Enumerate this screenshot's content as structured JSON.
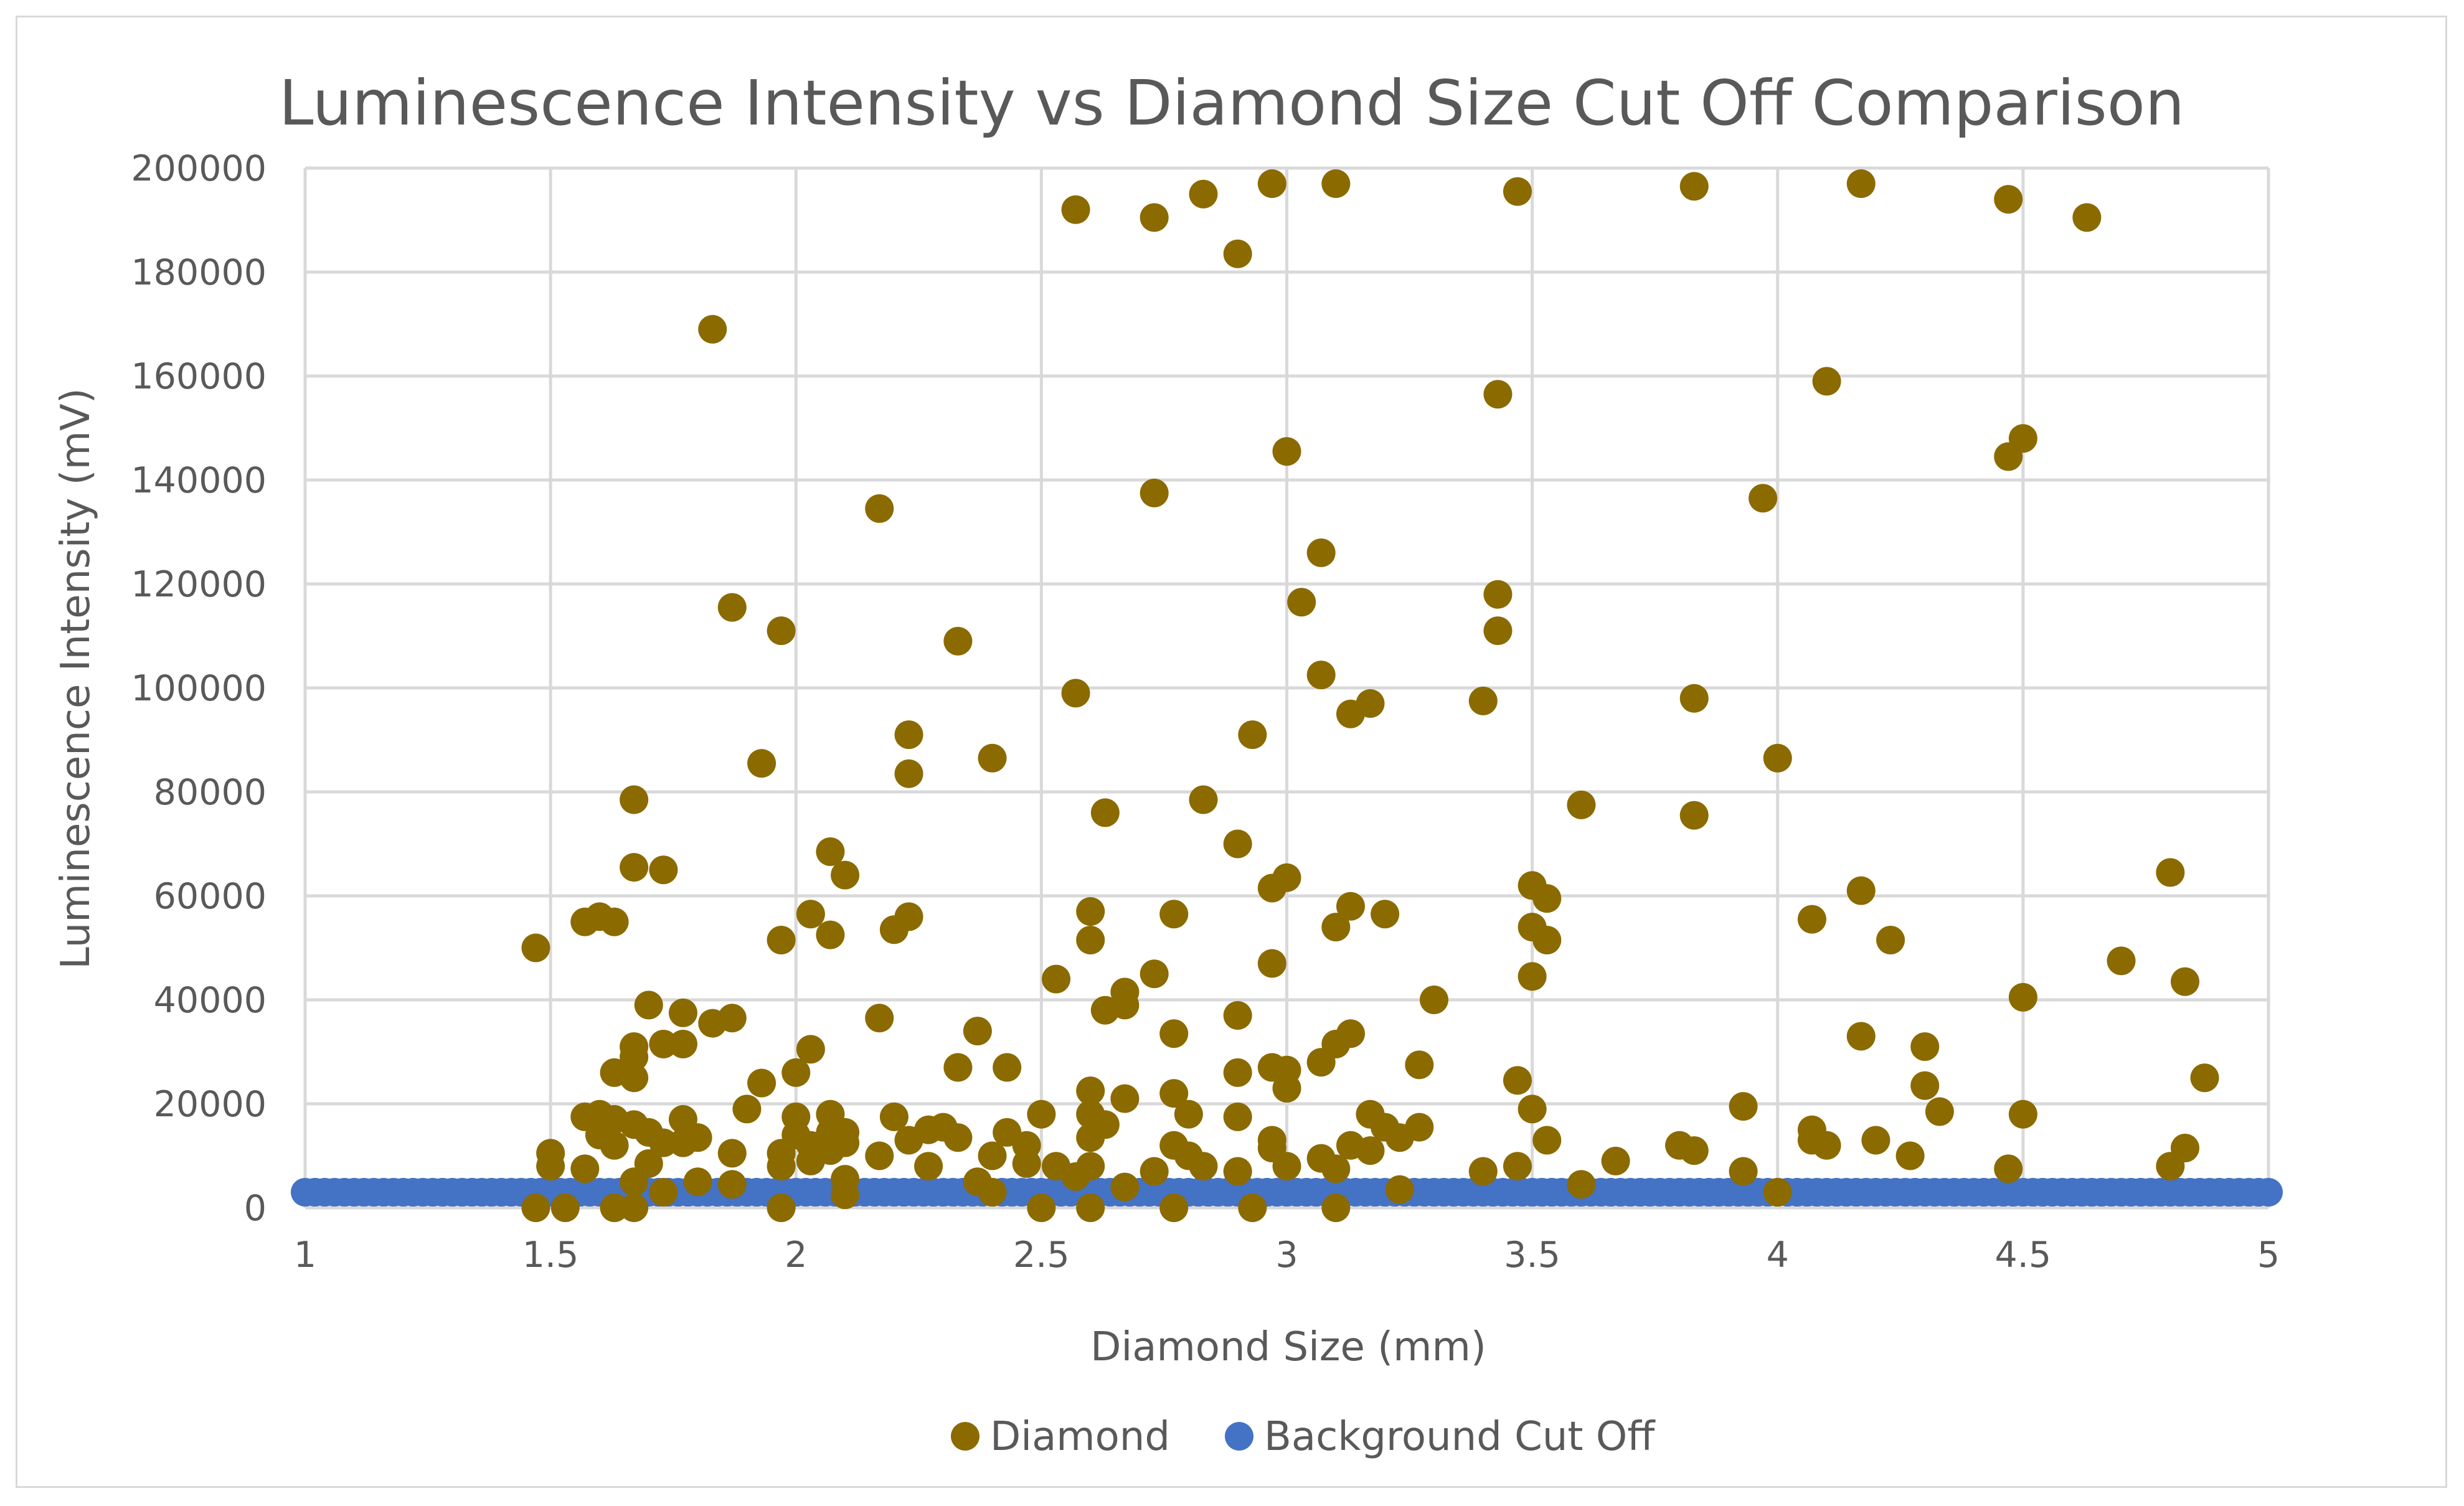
{
  "chart_data": {
    "type": "scatter",
    "title": "Luminescence Intensity vs Diamond Size Cut Off Comparison",
    "xlabel": "Diamond Size (mm)",
    "ylabel": "Luminescence Intensity (mV)",
    "xlim": [
      1,
      5
    ],
    "ylim": [
      0,
      200000
    ],
    "x_ticks": [
      1,
      1.5,
      2,
      2.5,
      3,
      3.5,
      4,
      4.5,
      5
    ],
    "x_tick_labels": [
      "1",
      "1.5",
      "2",
      "2.5",
      "3",
      "3.5",
      "4",
      "4.5",
      "5"
    ],
    "y_ticks": [
      0,
      20000,
      40000,
      60000,
      80000,
      100000,
      120000,
      140000,
      160000,
      180000,
      200000
    ],
    "y_tick_labels": [
      "0",
      "20000",
      "40000",
      "60000",
      "80000",
      "100000",
      "120000",
      "140000",
      "160000",
      "180000",
      "200000"
    ],
    "grid": true,
    "legend_position": "bottom",
    "series": [
      {
        "name": "Diamond",
        "color": "#8b6a00",
        "points": [
          [
            1.47,
            50000
          ],
          [
            1.57,
            55000
          ],
          [
            1.6,
            56000
          ],
          [
            1.63,
            55000
          ],
          [
            1.67,
            78500
          ],
          [
            1.67,
            65500
          ],
          [
            1.73,
            65000
          ],
          [
            1.83,
            169000
          ],
          [
            1.87,
            115500
          ],
          [
            1.93,
            85500
          ],
          [
            1.97,
            111000
          ],
          [
            1.97,
            51500
          ],
          [
            2.03,
            56500
          ],
          [
            2.07,
            52500
          ],
          [
            2.07,
            68500
          ],
          [
            2.1,
            64000
          ],
          [
            2.17,
            134500
          ],
          [
            2.2,
            53500
          ],
          [
            2.23,
            91000
          ],
          [
            2.23,
            83500
          ],
          [
            2.23,
            56000
          ],
          [
            2.33,
            109000
          ],
          [
            2.4,
            86500
          ],
          [
            2.57,
            192000
          ],
          [
            2.57,
            99000
          ],
          [
            2.6,
            57000
          ],
          [
            2.6,
            51500
          ],
          [
            2.63,
            76000
          ],
          [
            2.73,
            190500
          ],
          [
            2.73,
            137500
          ],
          [
            2.83,
            195000
          ],
          [
            2.83,
            78500
          ],
          [
            2.9,
            183500
          ],
          [
            2.9,
            70000
          ],
          [
            2.93,
            91000
          ],
          [
            2.97,
            197000
          ],
          [
            2.97,
            61500
          ],
          [
            3.0,
            145500
          ],
          [
            3.0,
            63500
          ],
          [
            3.03,
            116500
          ],
          [
            3.07,
            126000
          ],
          [
            3.07,
            102500
          ],
          [
            3.1,
            197000
          ],
          [
            3.1,
            54000
          ],
          [
            3.13,
            95000
          ],
          [
            3.13,
            58000
          ],
          [
            3.17,
            97000
          ],
          [
            3.2,
            56500
          ],
          [
            3.4,
            97500
          ],
          [
            3.43,
            156500
          ],
          [
            3.43,
            118000
          ],
          [
            3.43,
            111000
          ],
          [
            3.47,
            195500
          ],
          [
            3.5,
            62000
          ],
          [
            3.5,
            54000
          ],
          [
            3.53,
            59500
          ],
          [
            3.53,
            51500
          ],
          [
            3.6,
            77500
          ],
          [
            3.83,
            196500
          ],
          [
            3.83,
            98000
          ],
          [
            3.83,
            75500
          ],
          [
            3.97,
            136500
          ],
          [
            4.0,
            86500
          ],
          [
            4.07,
            55500
          ],
          [
            4.1,
            159000
          ],
          [
            4.17,
            197000
          ],
          [
            4.17,
            61000
          ],
          [
            4.23,
            51500
          ],
          [
            4.47,
            194000
          ],
          [
            4.47,
            144500
          ],
          [
            4.5,
            148000
          ],
          [
            4.63,
            190500
          ],
          [
            4.8,
            64500
          ],
          [
            1.5,
            10500
          ],
          [
            1.5,
            8000
          ],
          [
            1.47,
            0
          ],
          [
            1.53,
            0
          ],
          [
            1.57,
            17500
          ],
          [
            1.57,
            7500
          ],
          [
            1.6,
            18000
          ],
          [
            1.6,
            14000
          ],
          [
            1.63,
            26000
          ],
          [
            1.63,
            17000
          ],
          [
            1.63,
            12000
          ],
          [
            1.63,
            0
          ],
          [
            1.67,
            31000
          ],
          [
            1.67,
            29000
          ],
          [
            1.67,
            25000
          ],
          [
            1.67,
            16000
          ],
          [
            1.67,
            5000
          ],
          [
            1.67,
            0
          ],
          [
            1.7,
            39000
          ],
          [
            1.7,
            14500
          ],
          [
            1.7,
            8500
          ],
          [
            1.73,
            31500
          ],
          [
            1.73,
            12500
          ],
          [
            1.73,
            3000
          ],
          [
            1.77,
            37500
          ],
          [
            1.77,
            31500
          ],
          [
            1.77,
            17000
          ],
          [
            1.77,
            12500
          ],
          [
            1.8,
            13500
          ],
          [
            1.8,
            5000
          ],
          [
            1.83,
            35500
          ],
          [
            1.87,
            36500
          ],
          [
            1.87,
            10500
          ],
          [
            1.87,
            4500
          ],
          [
            1.9,
            19000
          ],
          [
            1.93,
            24000
          ],
          [
            1.97,
            10500
          ],
          [
            1.97,
            8000
          ],
          [
            1.97,
            0
          ],
          [
            2.0,
            26000
          ],
          [
            2.0,
            17500
          ],
          [
            2.0,
            14000
          ],
          [
            2.03,
            30500
          ],
          [
            2.03,
            12000
          ],
          [
            2.03,
            9000
          ],
          [
            2.07,
            18000
          ],
          [
            2.07,
            14500
          ],
          [
            2.07,
            11000
          ],
          [
            2.1,
            14500
          ],
          [
            2.1,
            12500
          ],
          [
            2.1,
            5500
          ],
          [
            2.1,
            2500
          ],
          [
            2.17,
            36500
          ],
          [
            2.17,
            10000
          ],
          [
            2.2,
            17500
          ],
          [
            2.23,
            13000
          ],
          [
            2.27,
            15000
          ],
          [
            2.27,
            8000
          ],
          [
            2.3,
            15500
          ],
          [
            2.33,
            27000
          ],
          [
            2.33,
            13500
          ],
          [
            2.37,
            34000
          ],
          [
            2.37,
            5000
          ],
          [
            2.4,
            10000
          ],
          [
            2.4,
            3000
          ],
          [
            2.43,
            27000
          ],
          [
            2.43,
            14500
          ],
          [
            2.47,
            12000
          ],
          [
            2.47,
            8500
          ],
          [
            2.5,
            18000
          ],
          [
            2.5,
            0
          ],
          [
            2.53,
            44000
          ],
          [
            2.53,
            8000
          ],
          [
            2.57,
            6000
          ],
          [
            2.6,
            22500
          ],
          [
            2.6,
            18000
          ],
          [
            2.6,
            13500
          ],
          [
            2.6,
            8000
          ],
          [
            2.6,
            0
          ],
          [
            2.63,
            38000
          ],
          [
            2.63,
            16000
          ],
          [
            2.67,
            41500
          ],
          [
            2.67,
            39000
          ],
          [
            2.67,
            21000
          ],
          [
            2.67,
            4000
          ],
          [
            2.73,
            45000
          ],
          [
            2.73,
            7000
          ],
          [
            2.77,
            56500
          ],
          [
            2.77,
            33500
          ],
          [
            2.77,
            22000
          ],
          [
            2.77,
            12000
          ],
          [
            2.77,
            0
          ],
          [
            2.8,
            18000
          ],
          [
            2.8,
            10000
          ],
          [
            2.83,
            8000
          ],
          [
            2.9,
            37000
          ],
          [
            2.9,
            26000
          ],
          [
            2.9,
            17500
          ],
          [
            2.9,
            7000
          ],
          [
            2.93,
            0
          ],
          [
            2.97,
            47000
          ],
          [
            2.97,
            27000
          ],
          [
            2.97,
            13000
          ],
          [
            2.97,
            11500
          ],
          [
            3.0,
            26500
          ],
          [
            3.0,
            23000
          ],
          [
            3.0,
            8000
          ],
          [
            3.07,
            28000
          ],
          [
            3.07,
            9500
          ],
          [
            3.1,
            31500
          ],
          [
            3.1,
            7500
          ],
          [
            3.1,
            0
          ],
          [
            3.13,
            33500
          ],
          [
            3.13,
            12000
          ],
          [
            3.17,
            18000
          ],
          [
            3.17,
            11000
          ],
          [
            3.2,
            15500
          ],
          [
            3.23,
            13500
          ],
          [
            3.23,
            3500
          ],
          [
            3.27,
            27500
          ],
          [
            3.27,
            15500
          ],
          [
            3.3,
            40000
          ],
          [
            3.4,
            7000
          ],
          [
            3.47,
            24500
          ],
          [
            3.47,
            8000
          ],
          [
            3.5,
            44500
          ],
          [
            3.5,
            19000
          ],
          [
            3.53,
            13000
          ],
          [
            3.6,
            4500
          ],
          [
            3.67,
            9000
          ],
          [
            3.8,
            12000
          ],
          [
            3.83,
            11000
          ],
          [
            3.93,
            19500
          ],
          [
            3.93,
            7000
          ],
          [
            4.0,
            3000
          ],
          [
            4.07,
            15000
          ],
          [
            4.07,
            13000
          ],
          [
            4.1,
            12000
          ],
          [
            4.17,
            33000
          ],
          [
            4.2,
            13000
          ],
          [
            4.27,
            10000
          ],
          [
            4.3,
            31000
          ],
          [
            4.3,
            23500
          ],
          [
            4.33,
            18500
          ],
          [
            4.47,
            7500
          ],
          [
            4.5,
            40500
          ],
          [
            4.5,
            18000
          ],
          [
            4.7,
            47500
          ],
          [
            4.8,
            8000
          ],
          [
            4.83,
            43500
          ],
          [
            4.83,
            11500
          ],
          [
            4.87,
            25000
          ]
        ]
      },
      {
        "name": "Background Cut Off",
        "color": "#4472c4",
        "points_note": "",
        "y_constant": 3000,
        "x_from": 1,
        "x_to": 5,
        "x_step": 0.02
      }
    ]
  }
}
